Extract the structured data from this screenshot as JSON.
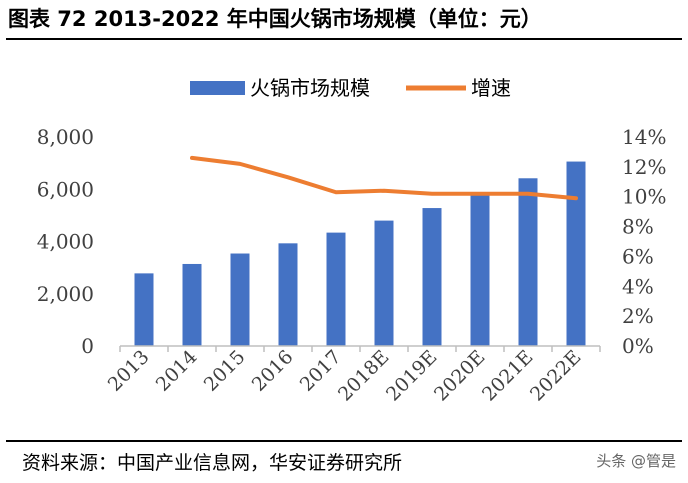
{
  "header": {
    "title": "图表 72 2013-2022 年中国火锅市场规模（单位：元）"
  },
  "footer": {
    "source": "资料来源：中国产业信息网，华安证券研究所",
    "watermark": "头条 @管是"
  },
  "colors": {
    "bar": "#4472C4",
    "line": "#ED7D31",
    "axis": "#BFBFBF",
    "text": "#404040"
  },
  "chart_data": {
    "type": "bar+line",
    "categories": [
      "2013",
      "2014",
      "2015",
      "2016",
      "2017",
      "2018E",
      "2019E",
      "2020E",
      "2021E",
      "2022E"
    ],
    "series": [
      {
        "name": "火锅市场规模",
        "type": "bar",
        "axis": "left",
        "values": [
          2780,
          3140,
          3540,
          3930,
          4340,
          4800,
          5280,
          5820,
          6420,
          7060
        ]
      },
      {
        "name": "增速",
        "type": "line",
        "axis": "right",
        "values": [
          null,
          12.6,
          12.2,
          11.3,
          10.3,
          10.4,
          10.2,
          10.2,
          10.2,
          9.9
        ]
      }
    ],
    "left_axis": {
      "min": 0,
      "max": 8000,
      "ticks": [
        "0",
        "2,000",
        "4,000",
        "6,000",
        "8,000"
      ]
    },
    "right_axis": {
      "min": 0,
      "max": 14,
      "ticks": [
        "0%",
        "2%",
        "4%",
        "6%",
        "8%",
        "10%",
        "12%",
        "14%"
      ]
    },
    "legend": {
      "position": "top"
    }
  }
}
